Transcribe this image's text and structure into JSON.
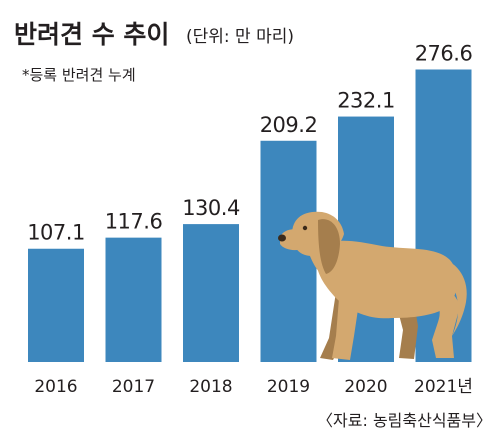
{
  "chart_data": {
    "type": "bar",
    "title": "반려견 수 추이",
    "unit": "(단위: 만 마리)",
    "note": "*등록 반려견 누계",
    "categories": [
      "2016",
      "2017",
      "2018",
      "2019",
      "2020",
      "2021년"
    ],
    "values": [
      107.1,
      117.6,
      130.4,
      209.2,
      232.1,
      276.6
    ],
    "value_labels": [
      "107.1",
      "117.6",
      "130.4",
      "209.2",
      "232.1",
      "276.6"
    ],
    "source": "〈자료: 농림축산식품부〉",
    "bar_color": "#3d87bd",
    "grid": false,
    "legend": "none"
  },
  "illustration": {
    "icon": "dog-illustration",
    "fur_color": "#d3a86f",
    "shadow_color": "#a57e4d"
  }
}
